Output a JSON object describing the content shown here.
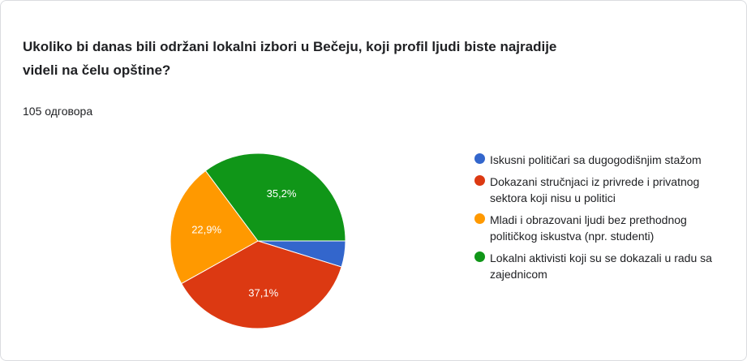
{
  "question": {
    "title": "Ukoliko bi danas bili održani lokalni izbori u Bečeju, koji profil ljudi biste najradije videli na čelu opštine?",
    "responses": "105 одговора"
  },
  "chart_data": {
    "type": "pie",
    "title": "",
    "slices": [
      {
        "name": "Iskusni političari sa dugogodišnjim stažom",
        "value": 4.8,
        "label": "",
        "color": "#3366cc"
      },
      {
        "name": "Dokazani stručnjaci iz privrede i privatnog sektora koji nisu u politici",
        "value": 37.1,
        "label": "37,1%",
        "color": "#dc3912"
      },
      {
        "name": "Mladi i obrazovani ljudi bez prethodnog političkog iskustva (npr. studenti)",
        "value": 22.9,
        "label": "22,9%",
        "color": "#ff9900"
      },
      {
        "name": "Lokalni aktivisti koji su se dokazali u radu sa zajednicom",
        "value": 35.2,
        "label": "35,2%",
        "color": "#109618"
      }
    ],
    "legend_position": "right"
  }
}
